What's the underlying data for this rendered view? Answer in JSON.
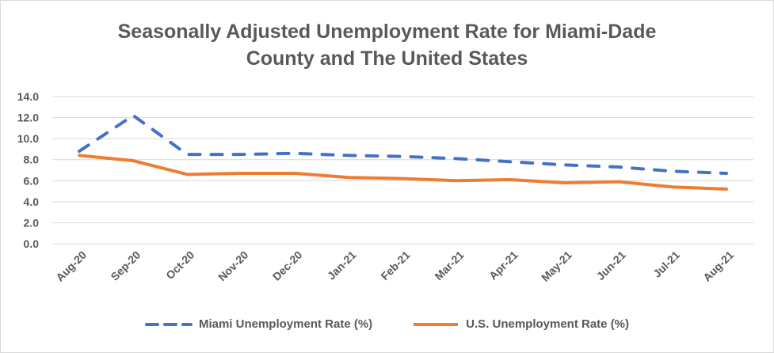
{
  "chart_data": {
    "type": "line",
    "title": "Seasonally Adjusted Unemployment Rate for Miami-Dade County and The United States",
    "title_lines": [
      "Seasonally Adjusted Unemployment Rate for Miami-Dade",
      "County and The United States"
    ],
    "categories": [
      "Aug-20",
      "Sep-20",
      "Oct-20",
      "Nov-20",
      "Dec-20",
      "Jan-21",
      "Feb-21",
      "Mar-21",
      "Apr-21",
      "May-21",
      "Jun-21",
      "Jul-21",
      "Aug-21"
    ],
    "yticks": [
      "0.0",
      "2.0",
      "4.0",
      "6.0",
      "8.0",
      "10.0",
      "12.0",
      "14.0"
    ],
    "ylim": [
      0,
      14
    ],
    "grid": true,
    "legend": "bottom",
    "series": [
      {
        "name": "Miami Unemployment Rate (%)",
        "color": "#4472c4",
        "dash": true,
        "values": [
          8.8,
          12.2,
          8.5,
          8.5,
          8.6,
          8.4,
          8.3,
          8.1,
          7.8,
          7.5,
          7.3,
          6.9,
          6.7
        ]
      },
      {
        "name": "U.S. Unemployment Rate (%)",
        "color": "#ed7d31",
        "dash": false,
        "values": [
          8.4,
          7.9,
          6.6,
          6.7,
          6.7,
          6.3,
          6.2,
          6.0,
          6.1,
          5.8,
          5.9,
          5.4,
          5.2
        ]
      }
    ]
  }
}
